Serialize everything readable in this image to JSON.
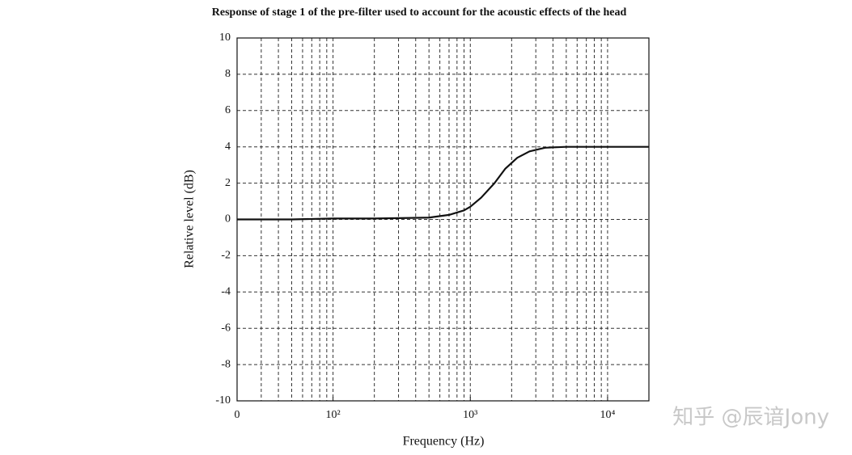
{
  "chart_data": {
    "type": "line",
    "title": "Response of stage 1 of the pre-filter used to account for the acoustic effects of the head",
    "xlabel": "Frequency (Hz)",
    "ylabel": "Relative level (dB)",
    "x": [
      20,
      50,
      100,
      200,
      500,
      700,
      900,
      1000,
      1200,
      1500,
      1800,
      2200,
      2700,
      3500,
      5000,
      10000,
      20000
    ],
    "series": [
      {
        "name": "stage 1",
        "color": "#111111",
        "values": [
          0,
          0,
          0.05,
          0.05,
          0.1,
          0.25,
          0.5,
          0.7,
          1.2,
          2.0,
          2.8,
          3.4,
          3.75,
          3.95,
          4.0,
          4.0,
          4.0
        ]
      }
    ],
    "xscale": "log",
    "xlim": [
      20,
      20000
    ],
    "xticks": [
      {
        "value": 20,
        "label": "0"
      },
      {
        "value": 100,
        "label": "10²"
      },
      {
        "value": 1000,
        "label": "10³"
      },
      {
        "value": 10000,
        "label": "10⁴"
      }
    ],
    "xgrid": [
      30,
      40,
      50,
      60,
      70,
      80,
      90,
      100,
      200,
      300,
      400,
      500,
      600,
      700,
      800,
      900,
      1000,
      2000,
      3000,
      4000,
      5000,
      6000,
      7000,
      8000,
      9000,
      10000
    ],
    "ylim": [
      -10,
      10
    ],
    "yticks": [
      -10,
      -8,
      -6,
      -4,
      -2,
      0,
      2,
      4,
      6,
      8,
      10
    ],
    "grid": true,
    "watermark": "知乎 @辰谙Jony"
  }
}
